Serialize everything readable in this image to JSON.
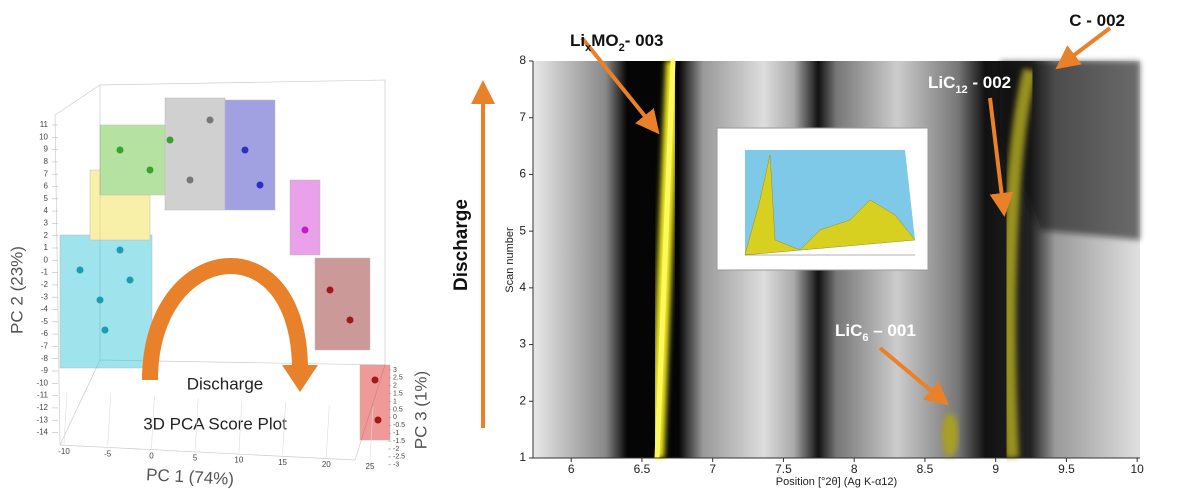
{
  "left_panel": {
    "title": "3D PCA Score Plot",
    "arrow_label": "Discharge",
    "x_label": "PC 1 (74%)",
    "y_label": "PC 2 (23%)",
    "z_label": "PC 3 (1%)",
    "xticks": [
      -10,
      -5,
      0,
      5,
      10,
      15,
      20,
      25
    ],
    "yticks": [
      11,
      10,
      9,
      8,
      7,
      6,
      5,
      4,
      3,
      2,
      1,
      0,
      -1,
      -2,
      -3,
      -4,
      -5,
      -6,
      -7,
      -8,
      -9,
      -10,
      -11,
      -12,
      -13,
      -14
    ],
    "zticks": [
      3,
      2.5,
      2,
      1.5,
      1,
      0.5,
      0,
      -0.5,
      -1,
      -1.5,
      -2,
      -2.5,
      -3
    ]
  },
  "center_label": "Discharge",
  "right_panel": {
    "x_label": "Position [°2θ] (Ag K-α12)",
    "y_label": "Scan number",
    "xlim": [
      5.73,
      10.02
    ],
    "ylim": [
      1,
      8
    ],
    "xticks": [
      6,
      6.5,
      7,
      7.5,
      8,
      8.5,
      9,
      9.5,
      10
    ],
    "yticks": [
      1,
      2,
      3,
      4,
      5,
      6,
      7,
      8
    ],
    "annotations": [
      {
        "parts": [
          "Li",
          "x",
          "MO",
          "2",
          "- 003"
        ]
      },
      {
        "parts": [
          "C - 002"
        ]
      },
      {
        "parts": [
          "LiC",
          "12",
          " - 002"
        ]
      },
      {
        "parts": [
          "LiC",
          "6",
          " – 001"
        ]
      }
    ]
  }
}
